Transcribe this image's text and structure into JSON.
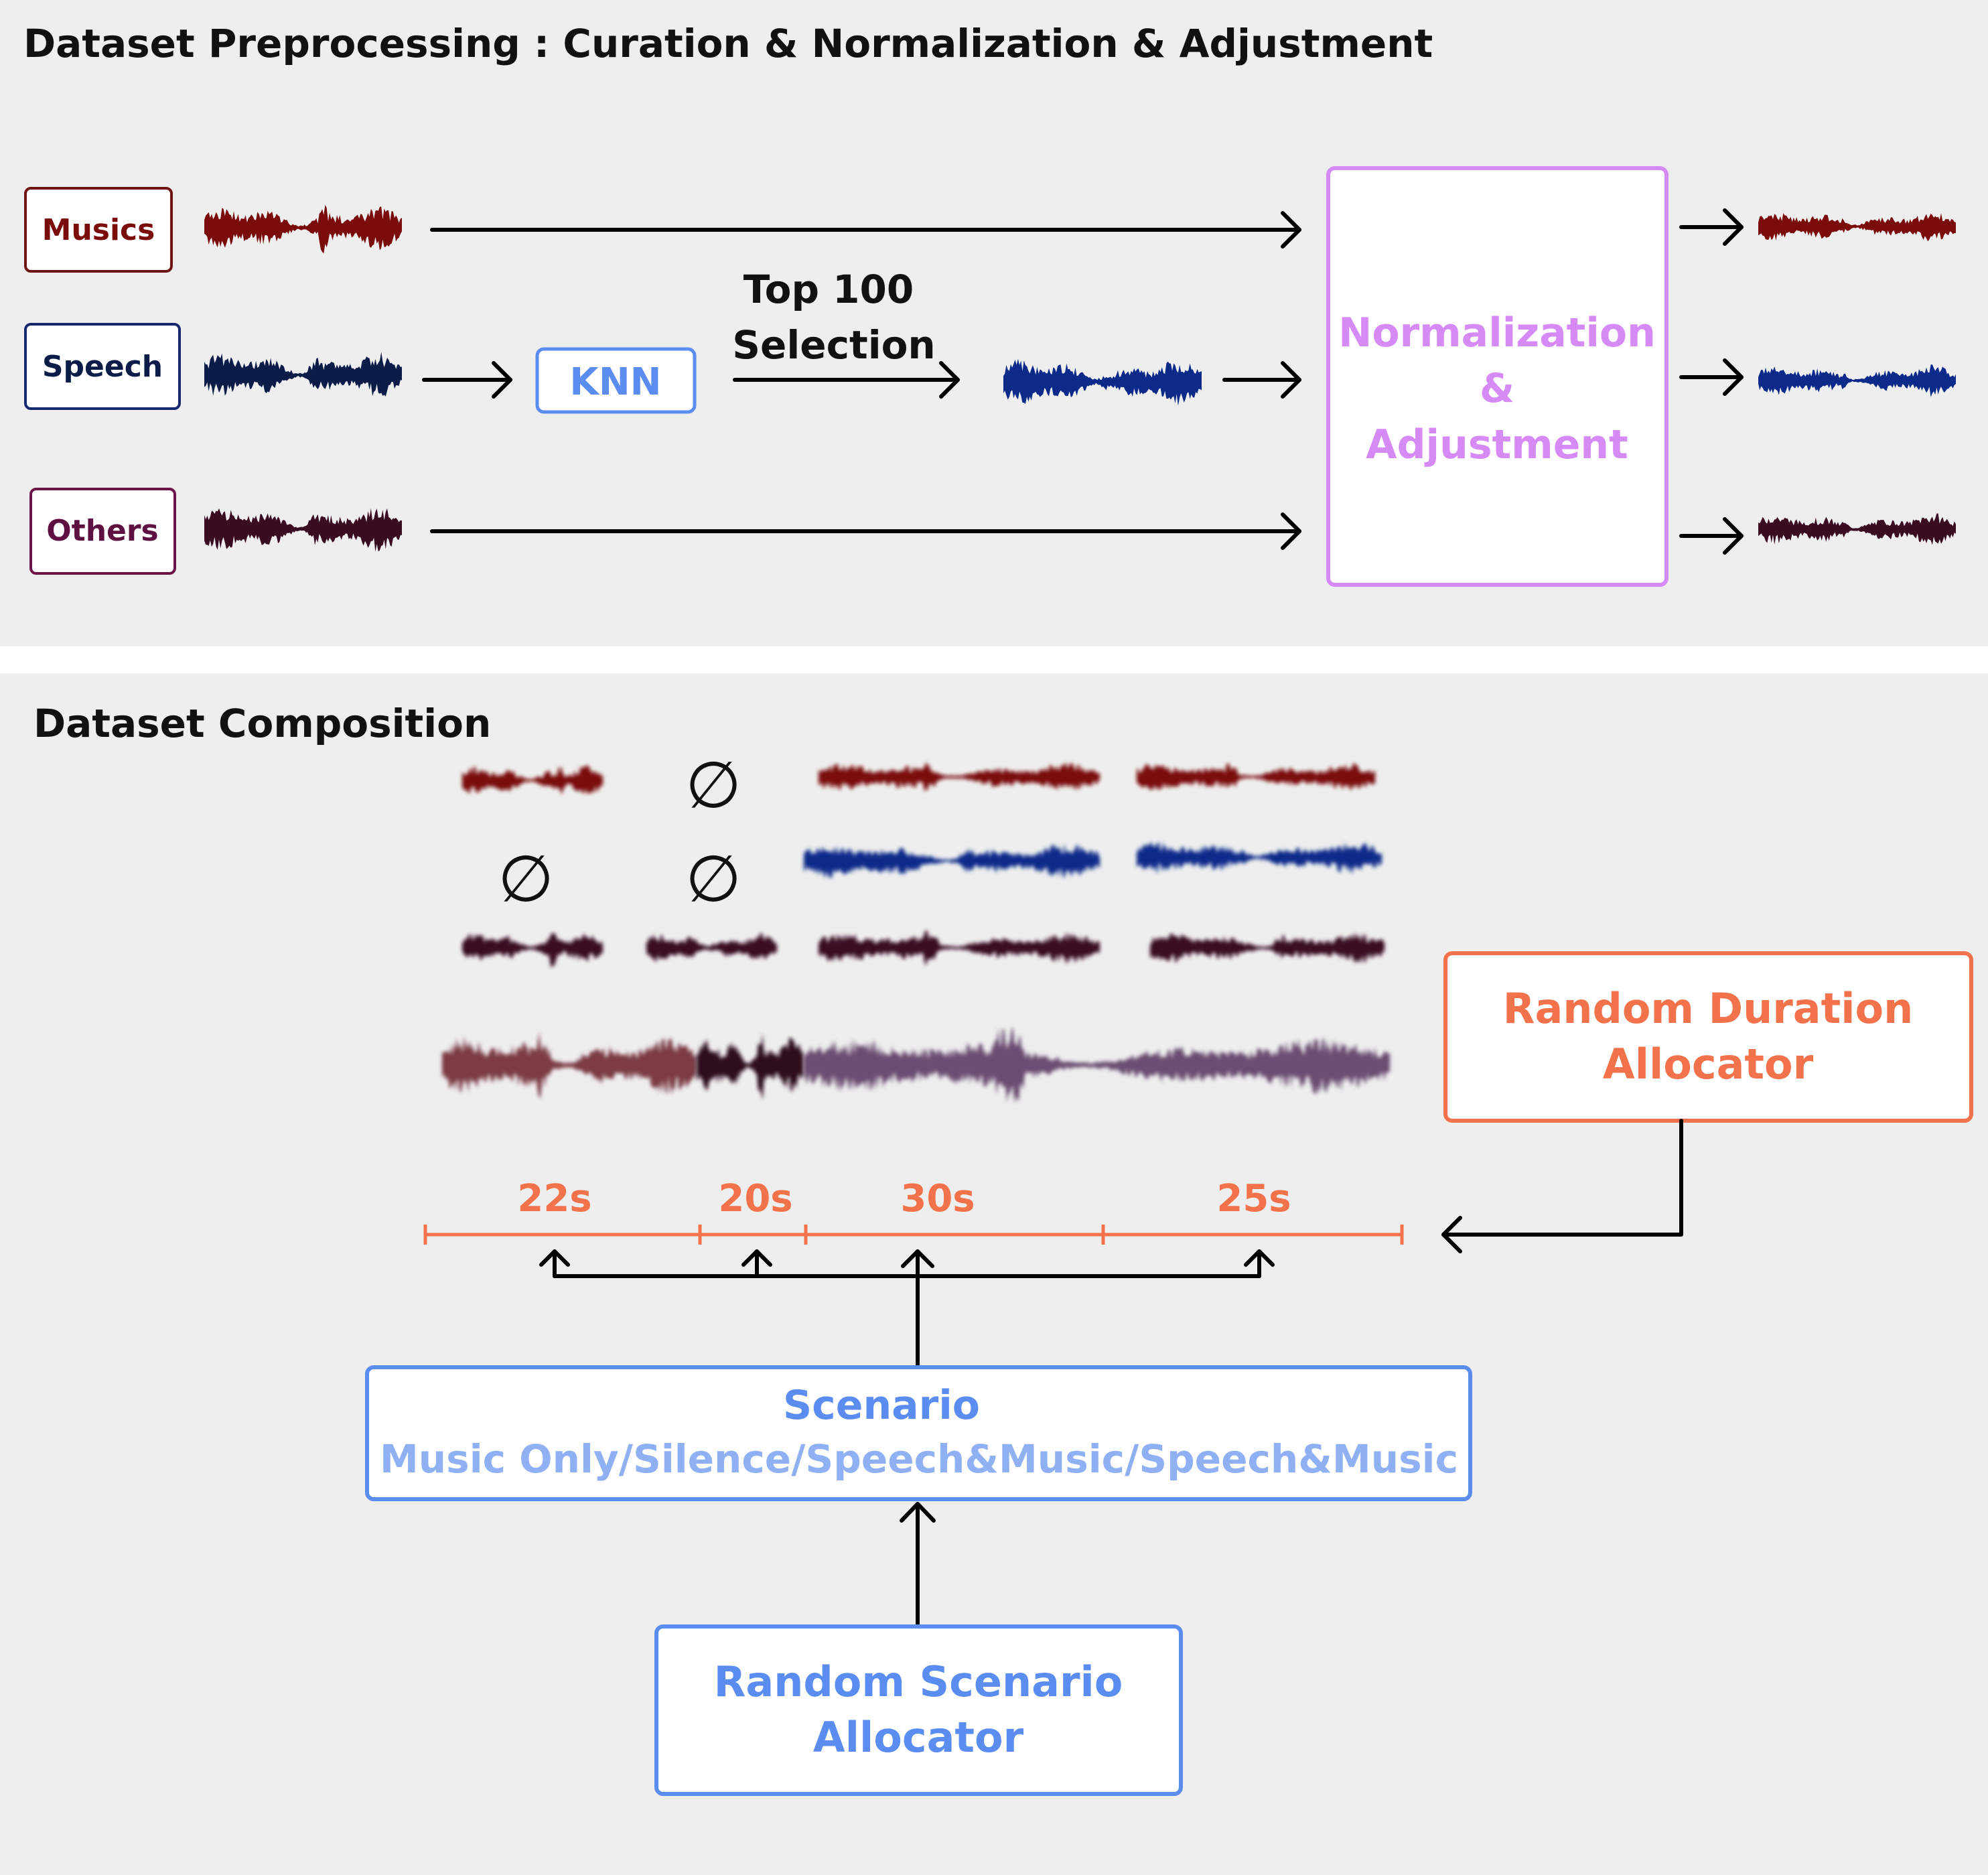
{
  "colors": {
    "panel": "#eeeeee",
    "music": "#7a0c0c",
    "speech": "#0b2a8a",
    "speech_dark": "#0c1c48",
    "others": "#3a0c22",
    "knn": "#5b8cf0",
    "normalization": "#d68af5",
    "duration": "#f2734b",
    "scenario": "#5b8cf0",
    "arrow": "#000000",
    "music_box_border": "#6e1414",
    "speech_box_border": "#16286e",
    "others_box_border": "#6c1448"
  },
  "preprocessing": {
    "title": "Dataset Preprocessing : Curation & Normalization & Adjustment",
    "sources": {
      "music": "Musics",
      "speech": "Speech",
      "others": "Others"
    },
    "knn_label": "KNN",
    "selection_line1": "Top 100",
    "selection_line2": "Selection",
    "norm_line1": "Normalization",
    "norm_line2": "&",
    "norm_line3": "Adjustment"
  },
  "composition": {
    "title": "Dataset Composition",
    "empty_symbol": "∅",
    "durations": [
      "22s",
      "20s",
      "30s",
      "25s"
    ],
    "duration_allocator_line1": "Random Duration",
    "duration_allocator_line2": "Allocator",
    "scenario_line1": "Scenario",
    "scenario_line2": "Music Only/Silence/Speech&Music/Speech&Music",
    "scenario_allocator_line1": "Random Scenario",
    "scenario_allocator_line2": "Allocator"
  }
}
